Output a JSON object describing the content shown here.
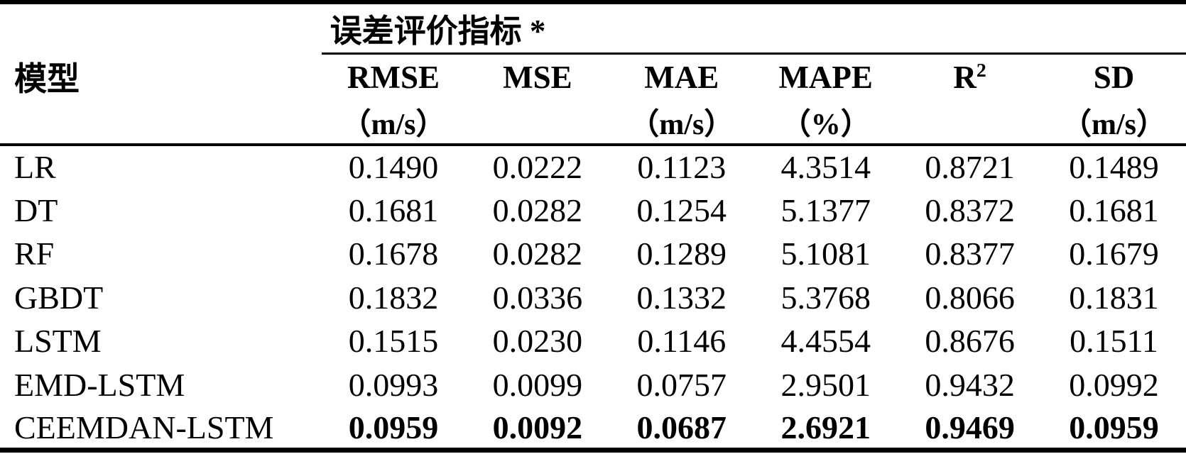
{
  "page": {
    "background_color": "#ffffff",
    "text_color": "#000000",
    "rule_color": "#000000"
  },
  "table": {
    "model_header": "模型",
    "spanner_label": "误差评价指标 *",
    "columns": [
      {
        "name": "RMSE",
        "unit": "（m/s）"
      },
      {
        "name": "MSE",
        "unit": ""
      },
      {
        "name": "MAE",
        "unit": "（m/s）"
      },
      {
        "name": "MAPE",
        "unit": "（%）"
      },
      {
        "name": "R",
        "sup": "2",
        "unit": ""
      },
      {
        "name": "SD",
        "unit": "（m/s）"
      }
    ],
    "rows": [
      {
        "model": "LR",
        "values": [
          "0.1490",
          "0.0222",
          "0.1123",
          "4.3514",
          "0.8721",
          "0.1489"
        ],
        "emphasis": false
      },
      {
        "model": "DT",
        "values": [
          "0.1681",
          "0.0282",
          "0.1254",
          "5.1377",
          "0.8372",
          "0.1681"
        ],
        "emphasis": false
      },
      {
        "model": "RF",
        "values": [
          "0.1678",
          "0.0282",
          "0.1289",
          "5.1081",
          "0.8377",
          "0.1679"
        ],
        "emphasis": false
      },
      {
        "model": "GBDT",
        "values": [
          "0.1832",
          "0.0336",
          "0.1332",
          "5.3768",
          "0.8066",
          "0.1831"
        ],
        "emphasis": false
      },
      {
        "model": "LSTM",
        "values": [
          "0.1515",
          "0.0230",
          "0.1146",
          "4.4554",
          "0.8676",
          "0.1511"
        ],
        "emphasis": false
      },
      {
        "model": "EMD-LSTM",
        "values": [
          "0.0993",
          "0.0099",
          "0.0757",
          "2.9501",
          "0.9432",
          "0.0992"
        ],
        "emphasis": false
      },
      {
        "model": "CEEMDAN-LSTM",
        "values": [
          "0.0959",
          "0.0092",
          "0.0687",
          "2.6921",
          "0.9469",
          "0.0959"
        ],
        "emphasis": true
      }
    ]
  },
  "chart_data": {
    "type": "table",
    "title": "误差评价指标 *",
    "row_header": "模型",
    "categories": [
      "LR",
      "DT",
      "RF",
      "GBDT",
      "LSTM",
      "EMD-LSTM",
      "CEEMDAN-LSTM"
    ],
    "series": [
      {
        "name": "RMSE（m/s）",
        "values": [
          0.149,
          0.1681,
          0.1678,
          0.1832,
          0.1515,
          0.0993,
          0.0959
        ]
      },
      {
        "name": "MSE",
        "values": [
          0.0222,
          0.0282,
          0.0282,
          0.0336,
          0.023,
          0.0099,
          0.0092
        ]
      },
      {
        "name": "MAE（m/s）",
        "values": [
          0.1123,
          0.1254,
          0.1289,
          0.1332,
          0.1146,
          0.0757,
          0.0687
        ]
      },
      {
        "name": "MAPE（%）",
        "values": [
          4.3514,
          5.1377,
          5.1081,
          5.3768,
          4.4554,
          2.9501,
          2.6921
        ]
      },
      {
        "name": "R2",
        "values": [
          0.8721,
          0.8372,
          0.8377,
          0.8066,
          0.8676,
          0.9432,
          0.9469
        ]
      },
      {
        "name": "SD（m/s）",
        "values": [
          0.1489,
          0.1681,
          0.1679,
          0.1831,
          0.1511,
          0.0992,
          0.0959
        ]
      }
    ],
    "notes": "Best (bold) row: CEEMDAN-LSTM"
  }
}
